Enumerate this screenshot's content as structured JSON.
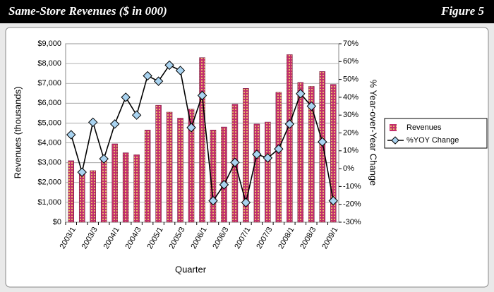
{
  "chart_data": {
    "type": "bar-line",
    "title": "Same-Store Revenues ($ in 000)",
    "figure_label": "Figure 5",
    "x_label": "Quarter",
    "y_label": "Revenues (thousands)",
    "y2_label": "% Year-over-Year Change",
    "categories": [
      "2003/1",
      null,
      "2003/3",
      null,
      "2004/1",
      null,
      "2004/3",
      null,
      "2005/1",
      null,
      "2005/3",
      null,
      "2006/1",
      null,
      "2006/3",
      null,
      "2007/1",
      null,
      "2007/3",
      null,
      "2008/1",
      null,
      "2008/3",
      null,
      "2009/1"
    ],
    "series": [
      {
        "name": "Revenues",
        "type": "bar",
        "color": "#c2306c",
        "values": [
          3100,
          2500,
          2600,
          3200,
          3950,
          3500,
          3400,
          4650,
          5900,
          5550,
          5250,
          5700,
          8300,
          4650,
          4800,
          5950,
          6750,
          4950,
          5050,
          6550,
          8450,
          7050,
          6850,
          7600,
          6950
        ]
      },
      {
        "name": "%YOY Change",
        "type": "line",
        "axis": "y2",
        "color": "#000000",
        "marker_color": "#a9d3f0",
        "values": [
          19,
          -2,
          26,
          5.5,
          25,
          40,
          30,
          52,
          49,
          58,
          55,
          23,
          41,
          -18,
          -9,
          3.5,
          -19,
          8,
          6,
          11,
          25,
          42,
          35,
          15,
          -18
        ]
      }
    ],
    "ylim": [
      0,
      9000
    ],
    "yticks": [
      {
        "value": 0,
        "label": "$0"
      },
      {
        "value": 1000,
        "label": "$1,000"
      },
      {
        "value": 2000,
        "label": "$2,000"
      },
      {
        "value": 3000,
        "label": "$3,000"
      },
      {
        "value": 4000,
        "label": "$4,000"
      },
      {
        "value": 5000,
        "label": "$5,000"
      },
      {
        "value": 6000,
        "label": "$6,000"
      },
      {
        "value": 7000,
        "label": "$7,000"
      },
      {
        "value": 8000,
        "label": "$8,000"
      },
      {
        "value": 9000,
        "label": "$9,000"
      }
    ],
    "y2lim": [
      -30,
      70
    ],
    "y2ticks": [
      {
        "value": -30,
        "label": "-30%"
      },
      {
        "value": -20,
        "label": "-20%"
      },
      {
        "value": -10,
        "label": "-10%"
      },
      {
        "value": 0,
        "label": "0%"
      },
      {
        "value": 10,
        "label": "10%"
      },
      {
        "value": 20,
        "label": "20%"
      },
      {
        "value": 30,
        "label": "30%"
      },
      {
        "value": 40,
        "label": "40%"
      },
      {
        "value": 50,
        "label": "50%"
      },
      {
        "value": 60,
        "label": "60%"
      },
      {
        "value": 70,
        "label": "70%"
      }
    ],
    "grid": true,
    "legend": "right"
  }
}
